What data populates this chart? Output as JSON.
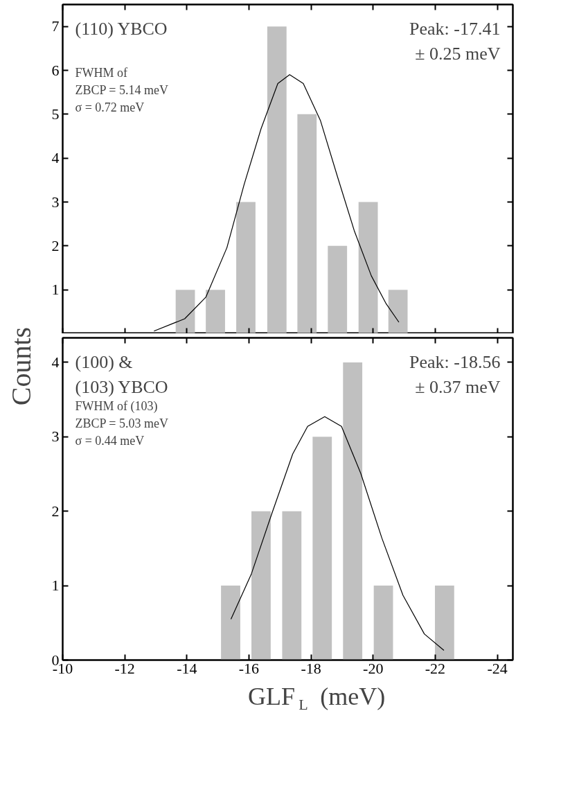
{
  "chart_data": [
    {
      "type": "bar",
      "ylabel": "Counts",
      "xlim": [
        -10,
        -24.5
      ],
      "xticks": [
        -10,
        -12,
        -14,
        -16,
        -18,
        -20,
        -22,
        -24
      ],
      "ylim": [
        0,
        7.5
      ],
      "yticks": [
        1,
        2,
        3,
        4,
        5,
        6,
        7
      ],
      "tick_labels": "y",
      "annotations": [
        "(110) YBCO",
        "FWHM of\nZBCP = 5.14 meV\nσ = 0.72 meV",
        "Peak: -17.41\n± 0.25 meV"
      ],
      "series": [
        {
          "color": "#c0c0c0",
          "x": [
            -13.95,
            -14.92,
            -15.9,
            -16.9,
            -17.87,
            -18.85,
            -19.84,
            -20.8
          ],
          "values": [
            1,
            1,
            3,
            7,
            5,
            2,
            3,
            1
          ]
        },
        {
          "type": "line",
          "color": "#000000",
          "x": [
            -12.94,
            -13.93,
            -14.61,
            -15.29,
            -15.84,
            -16.39,
            -16.93,
            -17.31,
            -17.75,
            -18.3,
            -18.85,
            -19.39,
            -19.94,
            -20.42,
            -20.83
          ],
          "values": [
            0.06,
            0.34,
            0.83,
            1.96,
            3.39,
            4.67,
            5.7,
            5.9,
            5.7,
            4.86,
            3.58,
            2.35,
            1.32,
            0.68,
            0.26
          ]
        }
      ]
    },
    {
      "type": "bar",
      "xlabel": "GLF$_{L}$ (meV)",
      "xlim": [
        -10,
        -24.5
      ],
      "xticks": [
        -10,
        -12,
        -14,
        -16,
        -18,
        -20,
        -22,
        -24
      ],
      "ylim": [
        0,
        4.33
      ],
      "yticks": [
        0,
        1,
        2,
        3,
        4
      ],
      "annotations": [
        "(100) &\n(103) YBCO",
        "FWHM of (103)\nZBCP = 5.03 meV\nσ = 0.44 meV",
        "Peak: -18.56\n± 0.37 meV"
      ],
      "series": [
        {
          "color": "#c0c0c0",
          "x": [
            -15.41,
            -16.39,
            -17.38,
            -18.36,
            -19.34,
            -20.33,
            -22.3
          ],
          "values": [
            1,
            2,
            2,
            3,
            4,
            1,
            1
          ]
        },
        {
          "type": "line",
          "color": "#000000",
          "x": [
            -15.42,
            -16.08,
            -16.73,
            -17.41,
            -17.89,
            -18.44,
            -18.98,
            -19.6,
            -20.28,
            -20.96,
            -21.65,
            -22.28
          ],
          "values": [
            0.55,
            1.16,
            1.96,
            2.77,
            3.14,
            3.27,
            3.14,
            2.51,
            1.64,
            0.87,
            0.35,
            0.13
          ]
        }
      ]
    }
  ]
}
